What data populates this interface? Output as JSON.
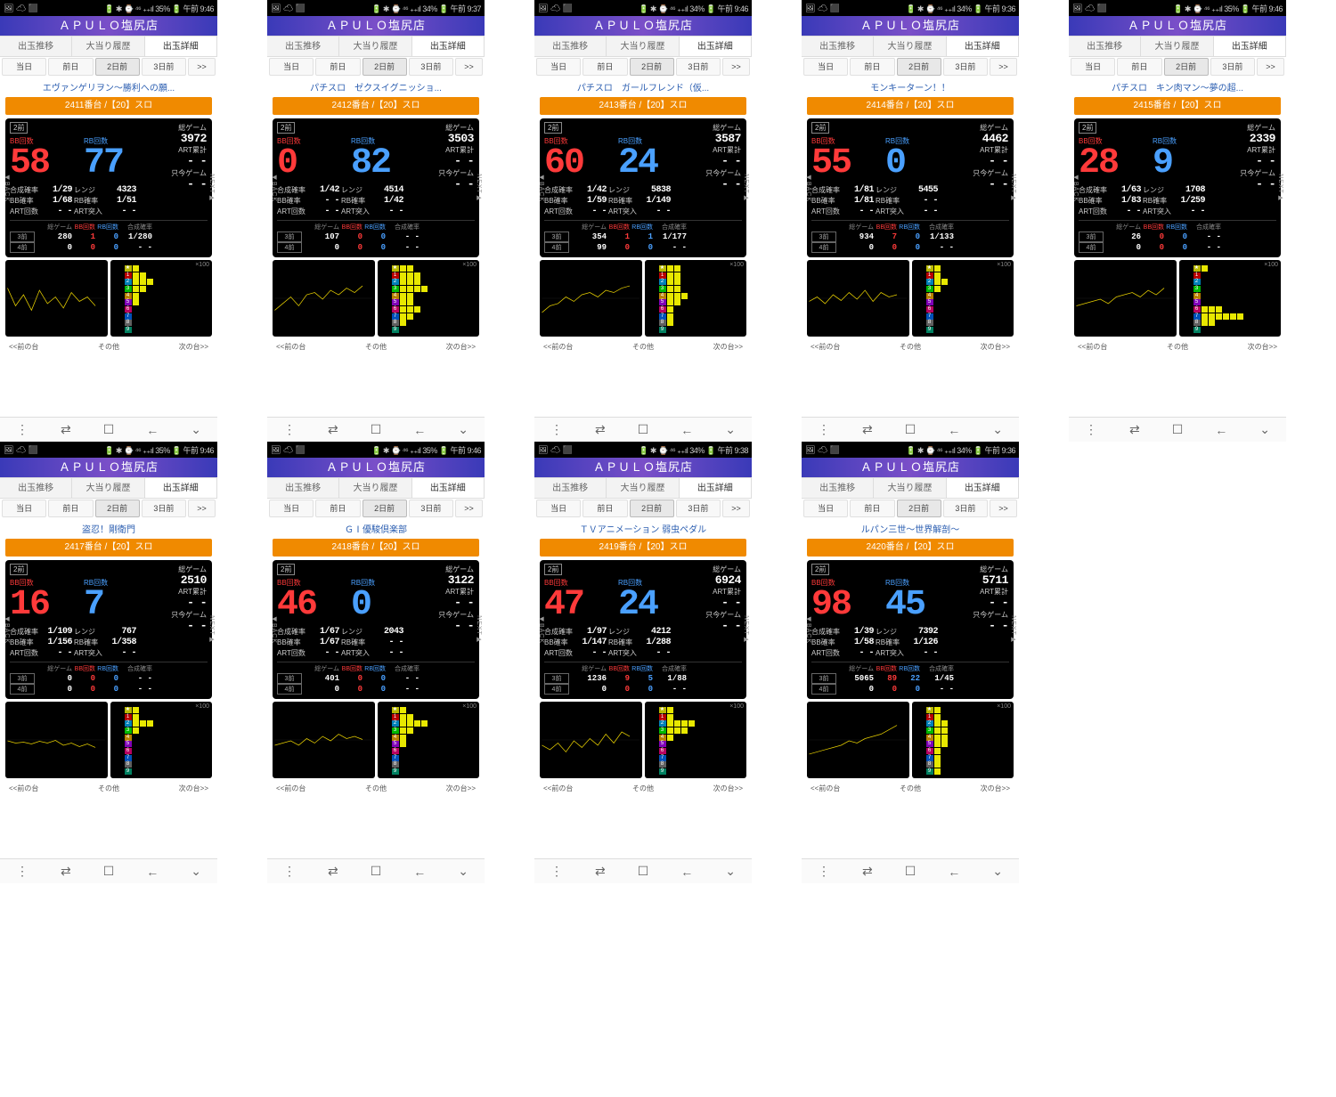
{
  "common": {
    "store": "ＡＰＵＬＯ塩尻店",
    "tabs": [
      "出玉推移",
      "大当り履歴",
      "出玉詳細"
    ],
    "days": [
      "当日",
      "前日",
      "2日前",
      "3日前",
      ">>"
    ],
    "statL": "🖼 ☁ ⬛",
    "rcol_labels": [
      "総ゲーム",
      "ART累計",
      "只今ゲーム"
    ],
    "stat_labels": [
      "合成確率",
      "レンジ",
      "BB確率",
      "RB確率",
      "ART回数",
      "ART突入"
    ],
    "hist_head": [
      "",
      "総ゲーム",
      "BB回数",
      "RB回数",
      "合成確率"
    ],
    "hist_tags": [
      "3前",
      "4前"
    ],
    "badge": "2前",
    "bb_label": "BB回数",
    "rb_label": "RB回数",
    "nav": [
      "⋮",
      "⇄",
      "☐",
      "←",
      "⌄"
    ],
    "btm": [
      "<<前の台",
      "その他",
      "次の台>>"
    ]
  },
  "screens": [
    {
      "status": "🔋 ✱ ⌚ ⁴⁶ ₊₊ıl 35% 🔋 午前 9:46",
      "title": "エヴァンゲリヲン～勝利への願...",
      "bar": "2411番台 /【20】スロ",
      "bb": "58",
      "rb": "77",
      "game": "3972",
      "art": "- -",
      "now": "- -",
      "s": [
        "1/29",
        "4323",
        "1/68",
        "1/51",
        "- -",
        "- -"
      ],
      "h3": [
        "280",
        "1",
        "0",
        "1/280"
      ],
      "h4": [
        "0",
        "0",
        "0",
        "- -"
      ],
      "line": [
        20,
        60,
        35,
        70,
        25,
        55,
        40,
        65,
        30,
        50,
        40,
        60
      ],
      "bars": [
        1,
        2,
        3,
        2,
        1,
        1,
        0,
        0,
        0,
        0
      ]
    },
    {
      "status": "🔋 ✱ ⌚ ⁴⁶ ₊₊ıl 34% 🔋 午前 9:37",
      "title": "パチスロ　ゼクスイグニッショ...",
      "bar": "2412番台 /【20】スロ",
      "bb": "0",
      "rb": "82",
      "game": "3503",
      "art": "- -",
      "now": "- -",
      "s": [
        "1/42",
        "4514",
        "- -",
        "1/42",
        "- -",
        "- -"
      ],
      "h3": [
        "107",
        "0",
        "0",
        "- -"
      ],
      "h4": [
        "0",
        "0",
        "0",
        "- -"
      ],
      "line": [
        70,
        55,
        40,
        60,
        35,
        30,
        45,
        25,
        35,
        20,
        30,
        15
      ],
      "bars": [
        2,
        3,
        3,
        4,
        2,
        2,
        3,
        2,
        1,
        0
      ]
    },
    {
      "status": "🔋 ✱ ⌚ ⁴⁶ ₊₊ıl 34% 🔋 午前 9:46",
      "title": "パチスロ　ガールフレンド（仮...",
      "bar": "2413番台 /【20】スロ",
      "bb": "60",
      "rb": "24",
      "game": "3587",
      "art": "- -",
      "now": "- -",
      "s": [
        "1/42",
        "5838",
        "1/59",
        "1/149",
        "- -",
        "- -"
      ],
      "h3": [
        "354",
        "1",
        "1",
        "1/177"
      ],
      "h4": [
        "99",
        "0",
        "0",
        "- -"
      ],
      "line": [
        75,
        60,
        55,
        40,
        50,
        35,
        30,
        40,
        25,
        30,
        20,
        15
      ],
      "bars": [
        2,
        2,
        2,
        2,
        3,
        2,
        1,
        1,
        1,
        0
      ]
    },
    {
      "status": "🔋 ✱ ⌚ ⁴⁶ ₊₊ıl 34% 🔋 午前 9:36",
      "title": "モンキーターン！！",
      "bar": "2414番台 /【20】スロ",
      "bb": "55",
      "rb": "0",
      "game": "4462",
      "art": "- -",
      "now": "- -",
      "s": [
        "1/81",
        "5455",
        "1/81",
        "- -",
        "- -",
        "- -"
      ],
      "h3": [
        "934",
        "7",
        "0",
        "1/133"
      ],
      "h4": [
        "0",
        "0",
        "0",
        "- -"
      ],
      "line": [
        50,
        40,
        55,
        35,
        48,
        30,
        45,
        25,
        50,
        30,
        40,
        35
      ],
      "bars": [
        1,
        1,
        2,
        1,
        0,
        0,
        0,
        0,
        0,
        0
      ]
    },
    {
      "status": "🔋 ✱ ⌚ ⁴⁶ ₊₊ıl 35% 🔋 午前 9:46",
      "title": "パチスロ　キン肉マン～夢の超...",
      "bar": "2415番台 /【20】スロ",
      "bb": "28",
      "rb": "9",
      "game": "2339",
      "art": "- -",
      "now": "- -",
      "s": [
        "1/63",
        "1708",
        "1/83",
        "1/259",
        "- -",
        "- -"
      ],
      "h3": [
        "26",
        "0",
        "0",
        "- -"
      ],
      "h4": [
        "0",
        "0",
        "0",
        "- -"
      ],
      "line": [
        60,
        55,
        50,
        45,
        55,
        40,
        35,
        30,
        40,
        25,
        35,
        20
      ],
      "bars": [
        1,
        0,
        0,
        0,
        0,
        0,
        3,
        6,
        2,
        0
      ]
    },
    {
      "status": "🔋 ✱ ⌚ ⁴⁶ ₊₊ıl 35% 🔋 午前 9:46",
      "title": "盗忍！剛衛門",
      "bar": "2417番台 /【20】スロ",
      "bb": "16",
      "rb": "7",
      "game": "2510",
      "art": "- -",
      "now": "- -",
      "s": [
        "1/109",
        "767",
        "1/156",
        "1/358",
        "- -",
        "- -"
      ],
      "h3": [
        "0",
        "0",
        "0",
        "- -"
      ],
      "h4": [
        "0",
        "0",
        "0",
        "- -"
      ],
      "line": [
        45,
        50,
        48,
        52,
        46,
        50,
        44,
        55,
        50,
        58,
        52,
        60
      ],
      "bars": [
        1,
        1,
        3,
        1,
        0,
        0,
        0,
        0,
        0,
        0
      ]
    },
    {
      "status": "🔋 ✱ ⌚ ⁴⁶ ₊₊ıl 35% 🔋 午前 9:46",
      "title": "ＧⅠ優駿倶楽部",
      "bar": "2418番台 /【20】スロ",
      "bb": "46",
      "rb": "0",
      "game": "3122",
      "art": "- -",
      "now": "- -",
      "s": [
        "1/67",
        "2043",
        "1/67",
        "- -",
        "- -",
        "- -"
      ],
      "h3": [
        "401",
        "0",
        "0",
        "- -"
      ],
      "h4": [
        "0",
        "0",
        "0",
        "- -"
      ],
      "line": [
        55,
        50,
        45,
        55,
        40,
        50,
        35,
        45,
        30,
        40,
        35,
        42
      ],
      "bars": [
        1,
        2,
        4,
        2,
        1,
        1,
        0,
        0,
        0,
        0
      ]
    },
    {
      "status": "🔋 ✱ ⌚ ⁴⁶ ₊₊ıl 34% 🔋 午前 9:38",
      "title": "ＴＶアニメーション 弱虫ペダル",
      "bar": "2419番台 /【20】スロ",
      "bb": "47",
      "rb": "24",
      "game": "6924",
      "art": "- -",
      "now": "- -",
      "s": [
        "1/97",
        "4212",
        "1/147",
        "1/288",
        "- -",
        "- -"
      ],
      "h3": [
        "1236",
        "9",
        "5",
        "1/88"
      ],
      "h4": [
        "0",
        "0",
        "0",
        "- -"
      ],
      "line": [
        55,
        65,
        50,
        70,
        45,
        60,
        40,
        55,
        30,
        50,
        25,
        35
      ],
      "bars": [
        1,
        1,
        4,
        3,
        1,
        0,
        0,
        0,
        0,
        0
      ]
    },
    {
      "status": "🔋 ✱ ⌚ ⁴⁶ ₊₊ıl 34% 🔋 午前 9:36",
      "title": "ルパン三世～世界解剖～",
      "bar": "2420番台 /【20】スロ",
      "bb": "98",
      "rb": "45",
      "game": "5711",
      "art": "- -",
      "now": "- -",
      "s": [
        "1/39",
        "7392",
        "1/58",
        "1/126",
        "- -",
        "- -"
      ],
      "h3": [
        "5065",
        "89",
        "22",
        "1/45"
      ],
      "h4": [
        "0",
        "0",
        "0",
        "- -"
      ],
      "line": [
        75,
        70,
        65,
        60,
        55,
        45,
        50,
        40,
        35,
        30,
        20,
        10
      ],
      "bars": [
        1,
        1,
        2,
        2,
        2,
        2,
        1,
        1,
        1,
        1
      ]
    }
  ]
}
